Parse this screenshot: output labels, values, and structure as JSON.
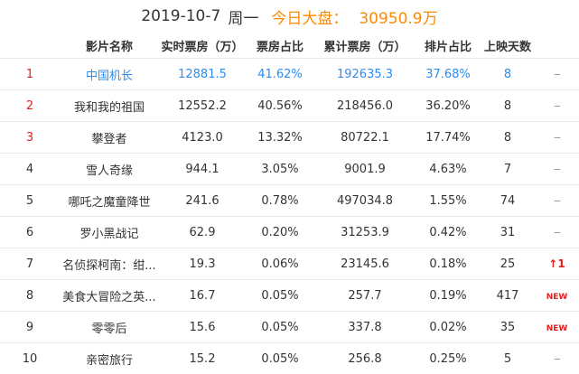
{
  "header": {
    "date": "2019-10-7",
    "weekday": "周一",
    "total_label": "今日大盘：",
    "total_value": "30950.9万"
  },
  "columns": [
    "影片名称",
    "实时票房（万）",
    "票房占比",
    "累计票房（万）",
    "排片占比",
    "上映天数"
  ],
  "rows": [
    {
      "rank": "1",
      "name": "中国机长",
      "realtime": "12881.5",
      "share": "41.62%",
      "total": "192635.3",
      "schedule": "37.68%",
      "days": "8",
      "trend": "--"
    },
    {
      "rank": "2",
      "name": "我和我的祖国",
      "realtime": "12552.2",
      "share": "40.56%",
      "total": "218456.0",
      "schedule": "36.20%",
      "days": "8",
      "trend": "--"
    },
    {
      "rank": "3",
      "name": "攀登者",
      "realtime": "4123.0",
      "share": "13.32%",
      "total": "80722.1",
      "schedule": "17.74%",
      "days": "8",
      "trend": "--"
    },
    {
      "rank": "4",
      "name": "雪人奇缘",
      "realtime": "944.1",
      "share": "3.05%",
      "total": "9001.9",
      "schedule": "4.63%",
      "days": "7",
      "trend": "--"
    },
    {
      "rank": "5",
      "name": "哪吒之魔童降世",
      "realtime": "241.6",
      "share": "0.78%",
      "total": "497034.8",
      "schedule": "1.55%",
      "days": "74",
      "trend": "--"
    },
    {
      "rank": "6",
      "name": "罗小黑战记",
      "realtime": "62.9",
      "share": "0.20%",
      "total": "31253.9",
      "schedule": "0.42%",
      "days": "31",
      "trend": "--"
    },
    {
      "rank": "7",
      "name": "名侦探柯南：绀...",
      "realtime": "19.3",
      "share": "0.06%",
      "total": "23145.6",
      "schedule": "0.18%",
      "days": "25",
      "trend": "↑1"
    },
    {
      "rank": "8",
      "name": "美食大冒险之英...",
      "realtime": "16.7",
      "share": "0.05%",
      "total": "257.7",
      "schedule": "0.19%",
      "days": "417",
      "trend": "NEW"
    },
    {
      "rank": "9",
      "name": "零零后",
      "realtime": "15.6",
      "share": "0.05%",
      "total": "337.8",
      "schedule": "0.02%",
      "days": "35",
      "trend": "NEW"
    },
    {
      "rank": "10",
      "name": "亲密旅行",
      "realtime": "15.2",
      "share": "0.05%",
      "total": "256.8",
      "schedule": "0.25%",
      "days": "5",
      "trend": "--"
    }
  ],
  "colors": {
    "highlight": "#2d8cf0",
    "accent": "#ff8a00",
    "rank_top": "#e02020"
  }
}
